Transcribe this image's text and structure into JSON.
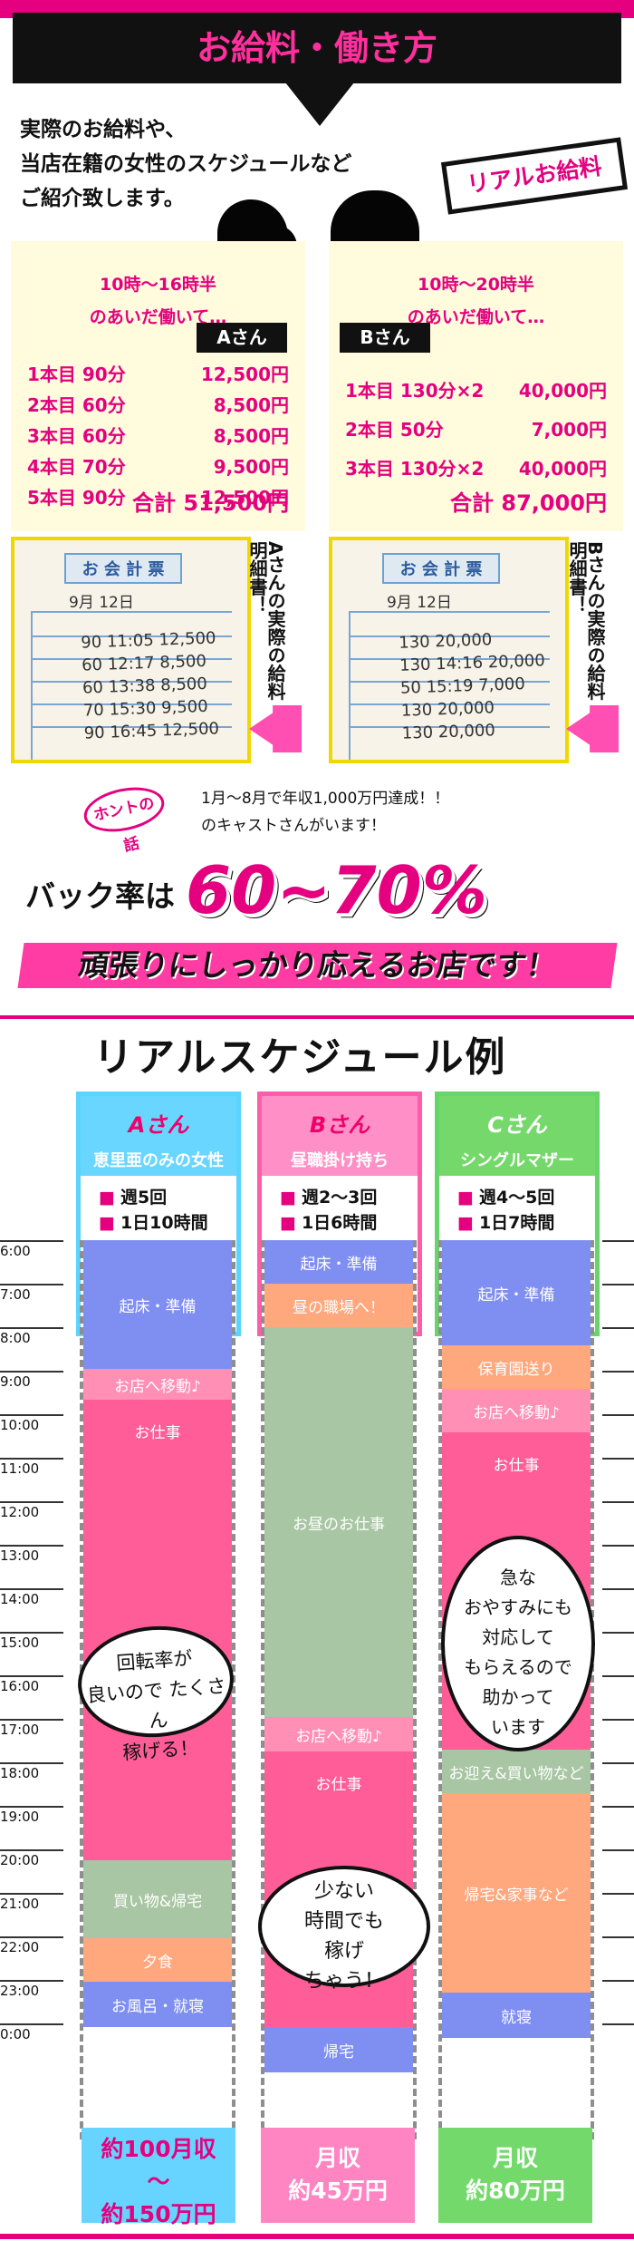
{
  "header": {
    "title": "お給料・働き方"
  },
  "intro": {
    "text": "実際のお給料や、\n当店在籍の女性のスケジュールなど\nご紹介致します。",
    "badge": "リアルお給料"
  },
  "cards": [
    {
      "work": "10時～16時半\nのあいだ働いて…",
      "person": "Aさん",
      "rows": [
        [
          "1本目 90分",
          "12,500円"
        ],
        [
          "2本目 60分",
          "8,500円"
        ],
        [
          "3本目 60分",
          "8,500円"
        ],
        [
          "4本目 70分",
          "9,500円"
        ],
        [
          "5本目 90分",
          "12,500円"
        ]
      ],
      "total": "合計 51,500円"
    },
    {
      "work": "10時～20時半\nのあいだ働いて…",
      "person": "Bさん",
      "rows": [
        [
          "1本目 130分×2",
          "40,000円"
        ],
        [
          "2本目 50分",
          "7,000円"
        ],
        [
          "3本目 130分×2",
          "40,000円"
        ]
      ],
      "total": "合計 87,000円"
    }
  ],
  "receipts": [
    {
      "title": "お 会 計 票",
      "date": "9月 12日",
      "label": "Aさんの実際の給料明細書！",
      "lines": [
        "90 11:05 12,500",
        "60 12:17 8,500",
        "60 13:38 8,500",
        "70 15:30 9,500",
        "90 16:45 12,500"
      ]
    },
    {
      "title": "お 会 計 票",
      "date": "9月 12日",
      "label": "Bさんの実際の給料明細書！",
      "lines": [
        "130 20,000",
        "130 14:16 20,000",
        "50 15:19 7,000",
        "130 20,000",
        "130 20,000"
      ]
    }
  ],
  "story": {
    "badge": "ホントの話",
    "line1": "1月～8月で年収1,000万円達成！！",
    "line2": "のキャストさんがいます！"
  },
  "rate": {
    "prefix": "バック率は",
    "value": "60~70%",
    "slogan": "頑張りにしっかり応えるお店です！"
  },
  "schedule": {
    "title": "リアルスケジュール例",
    "times": [
      "6:00",
      "7:00",
      "8:00",
      "9:00",
      "10:00",
      "11:00",
      "12:00",
      "13:00",
      "14:00",
      "15:00",
      "16:00",
      "17:00",
      "18:00",
      "19:00",
      "20:00",
      "21:00",
      "22:00",
      "23:00",
      "0:00"
    ],
    "columns": [
      {
        "name": "A",
        "suffix": "さん",
        "sub": "恵里亜のみの女性",
        "days": "週5回",
        "hours": "1日10時間",
        "income": "約100月収\n～\n約150万円"
      },
      {
        "name": "B",
        "suffix": "さん",
        "sub": "昼職掛け持ち",
        "days": "週2～3回",
        "hours": "1日6時間",
        "income": "月収\n約45万円"
      },
      {
        "name": "C",
        "suffix": "さん",
        "sub": "シングルマザー",
        "days": "週4～5回",
        "hours": "1日7時間",
        "income": "月収\n約80万円"
      }
    ],
    "events": {
      "a": [
        "起床・準備",
        "お店へ移動♪",
        "お仕事",
        "買い物&帰宅",
        "夕食",
        "お風呂・就寝"
      ],
      "b": [
        "起床・準備",
        "昼の職場へ！",
        "お昼のお仕事",
        "お店へ移動♪",
        "お仕事",
        "帰宅"
      ],
      "c": [
        "起床・準備",
        "保育園送り",
        "お店へ移動♪",
        "お仕事",
        "お迎え&買い物など",
        "帰宅&家事など",
        "就寝"
      ]
    },
    "bubbles": [
      "回転率が\n良いので たくさん\n稼げる！",
      "急な\nおやすみにも\n対応して\nもらえるので\n助かって\nいます",
      "少ない\n時間でも\n稼げ\nちゃう！"
    ]
  }
}
